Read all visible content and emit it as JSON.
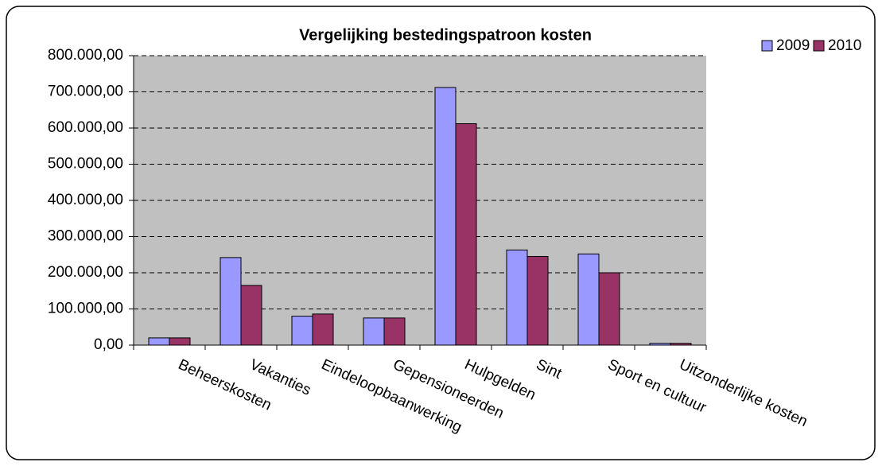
{
  "chart_data": {
    "type": "bar",
    "title": "Vergelijking bestedingspatroon kosten",
    "categories": [
      "Beheerskosten",
      "Vakanties",
      "Eindeloopbaanwerking",
      "Gepensioneerden",
      "Hulpgelden",
      "Sint",
      "Sport en cultuur",
      "Uitzonderlijke kosten"
    ],
    "series": [
      {
        "name": "2009",
        "color": "#9999ff",
        "values": [
          20000,
          242000,
          80000,
          75000,
          712000,
          263000,
          252000,
          5000
        ]
      },
      {
        "name": "2010",
        "color": "#993366",
        "values": [
          20000,
          165000,
          86000,
          75000,
          612000,
          245000,
          200000,
          5000
        ]
      }
    ],
    "ylim": [
      0,
      800000
    ],
    "yticks": [
      {
        "value": 0,
        "label": "0,00"
      },
      {
        "value": 100000,
        "label": "100.000,00"
      },
      {
        "value": 200000,
        "label": "200.000,00"
      },
      {
        "value": 300000,
        "label": "300.000,00"
      },
      {
        "value": 400000,
        "label": "400.000,00"
      },
      {
        "value": 500000,
        "label": "500.000,00"
      },
      {
        "value": 600000,
        "label": "600.000,00"
      },
      {
        "value": 700000,
        "label": "700.000,00"
      },
      {
        "value": 800000,
        "label": "800.000,00"
      }
    ],
    "grid": true,
    "legend": "top-right"
  }
}
